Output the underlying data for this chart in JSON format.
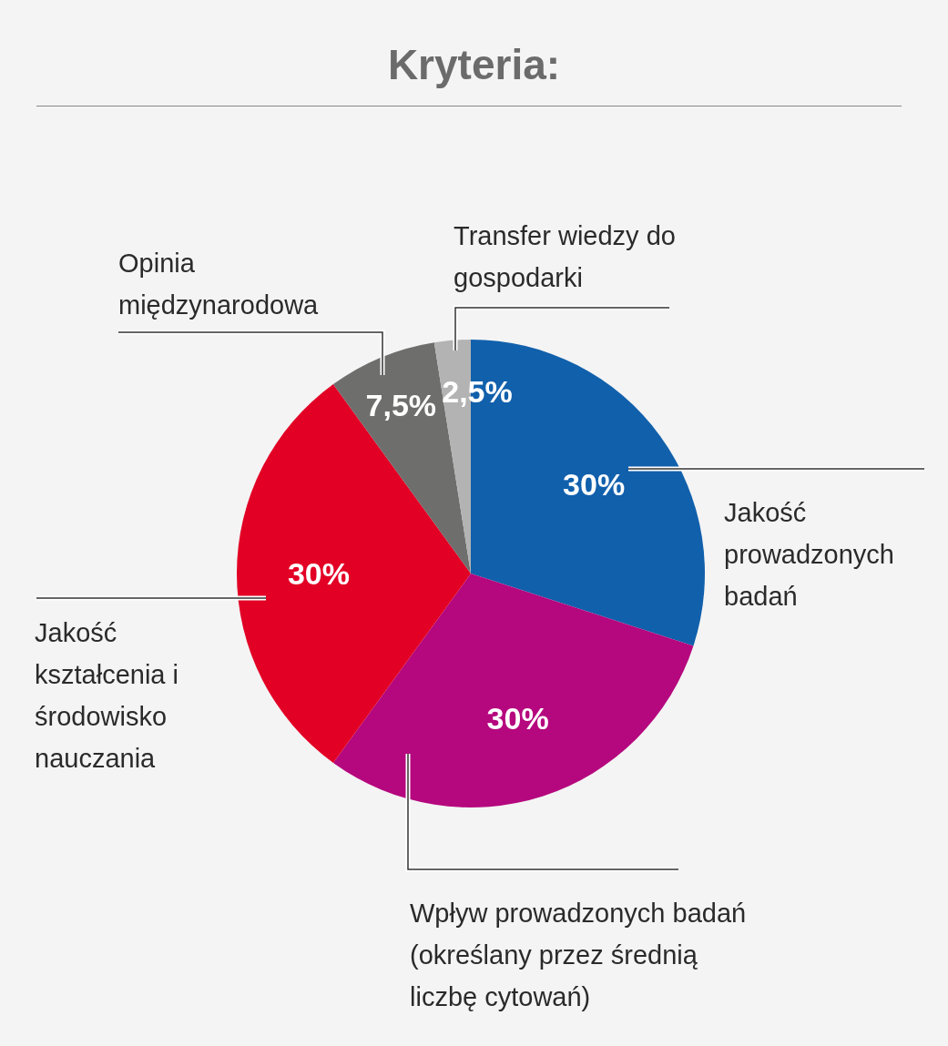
{
  "chart_data": {
    "type": "pie",
    "title": "Kryteria:",
    "categories": [
      "Jakość prowadzonych badań",
      "Wpływ prowadzonych badań (określany przez średnią liczbę cytowań)",
      "Jakość kształcenia i środowisko nauczania",
      "Opinia międzynarodowa",
      "Transfer wiedzy do gospodarki"
    ],
    "values": [
      30,
      30,
      30,
      7.5,
      2.5
    ],
    "value_labels": [
      "30%",
      "30%",
      "30%",
      "7,5%",
      "2,5%"
    ],
    "colors": [
      "#1160ac",
      "#b5077e",
      "#e20025",
      "#6e6e6d",
      "#b3b3b3"
    ]
  }
}
